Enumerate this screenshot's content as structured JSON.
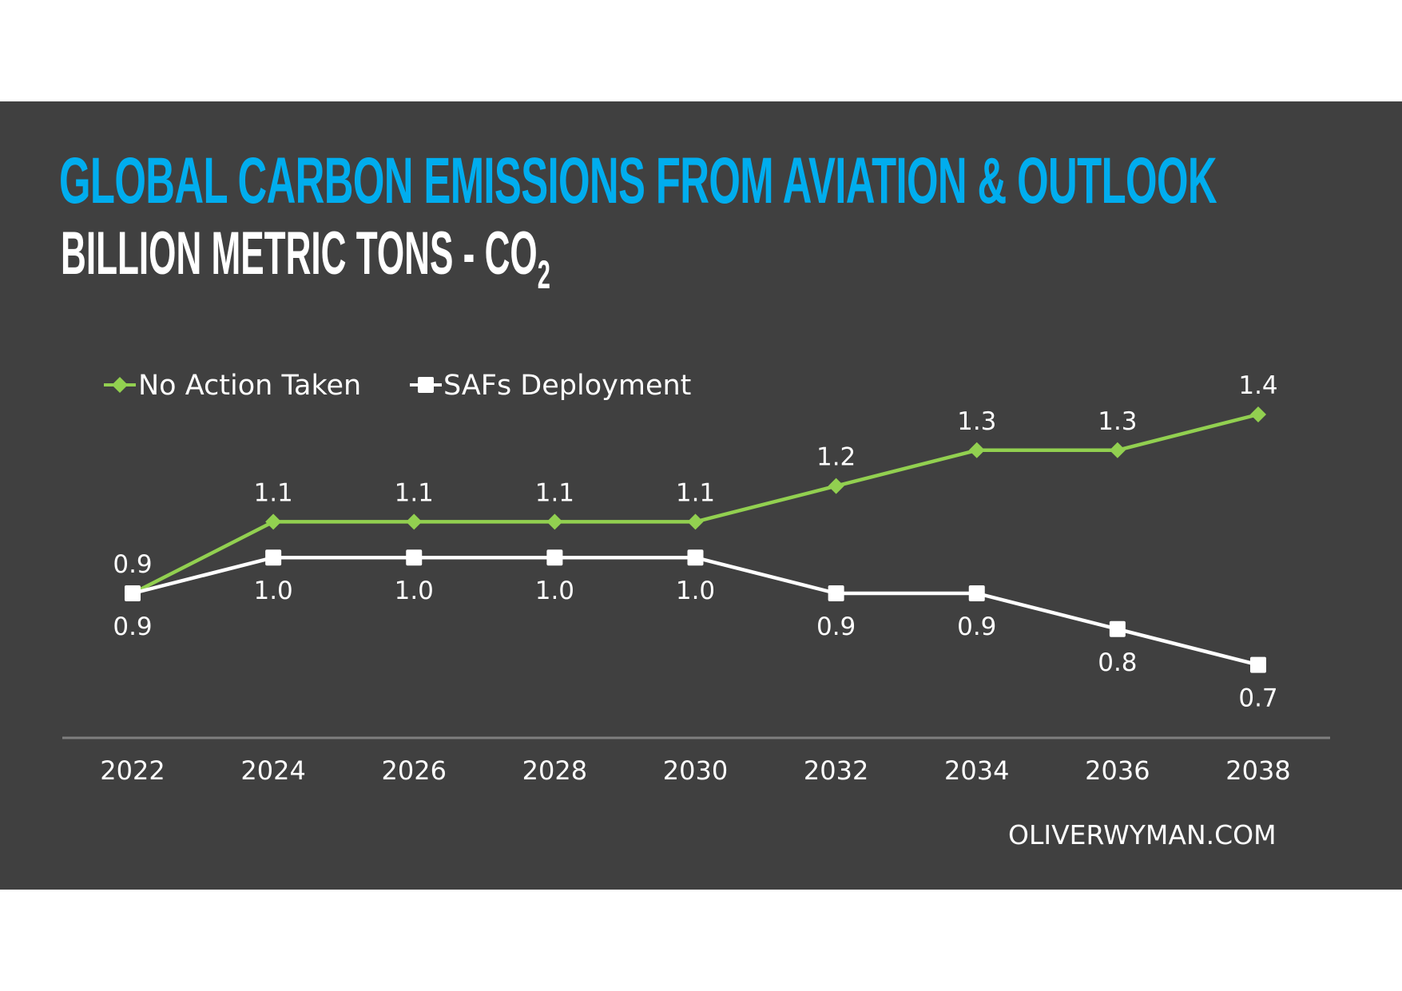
{
  "title": "GLOBAL CARBON EMISSIONS FROM AVIATION & OUTLOOK",
  "subtitle": {
    "main": "BILLION METRIC TONS - CO",
    "subscript": "2"
  },
  "footer": "OLIVERWYMAN.COM",
  "colors": {
    "background": "#404040",
    "title": "#00adee",
    "no_action": "#92d050",
    "safs": "#ffffff",
    "axis": "#7f7f7f"
  },
  "chart_data": {
    "type": "line",
    "title": "GLOBAL CARBON EMISSIONS FROM AVIATION & OUTLOOK",
    "subtitle": "BILLION METRIC TONS - CO2",
    "xlabel": "",
    "ylabel": "Billion metric tons CO2",
    "categories": [
      "2022",
      "2024",
      "2026",
      "2028",
      "2030",
      "2032",
      "2034",
      "2036",
      "2038"
    ],
    "series": [
      {
        "name": "No Action Taken",
        "marker": "diamond",
        "color": "#92d050",
        "values": [
          0.9,
          1.1,
          1.1,
          1.1,
          1.1,
          1.2,
          1.3,
          1.3,
          1.4
        ],
        "label_position": "above"
      },
      {
        "name": "SAFs Deployment",
        "marker": "square",
        "color": "#ffffff",
        "values": [
          0.9,
          1.0,
          1.0,
          1.0,
          1.0,
          0.9,
          0.9,
          0.8,
          0.7
        ],
        "label_position": "below"
      }
    ],
    "ylim": [
      0.3,
      1.5
    ],
    "grid": false,
    "y_axis_visible": false,
    "legend": "top-left"
  }
}
